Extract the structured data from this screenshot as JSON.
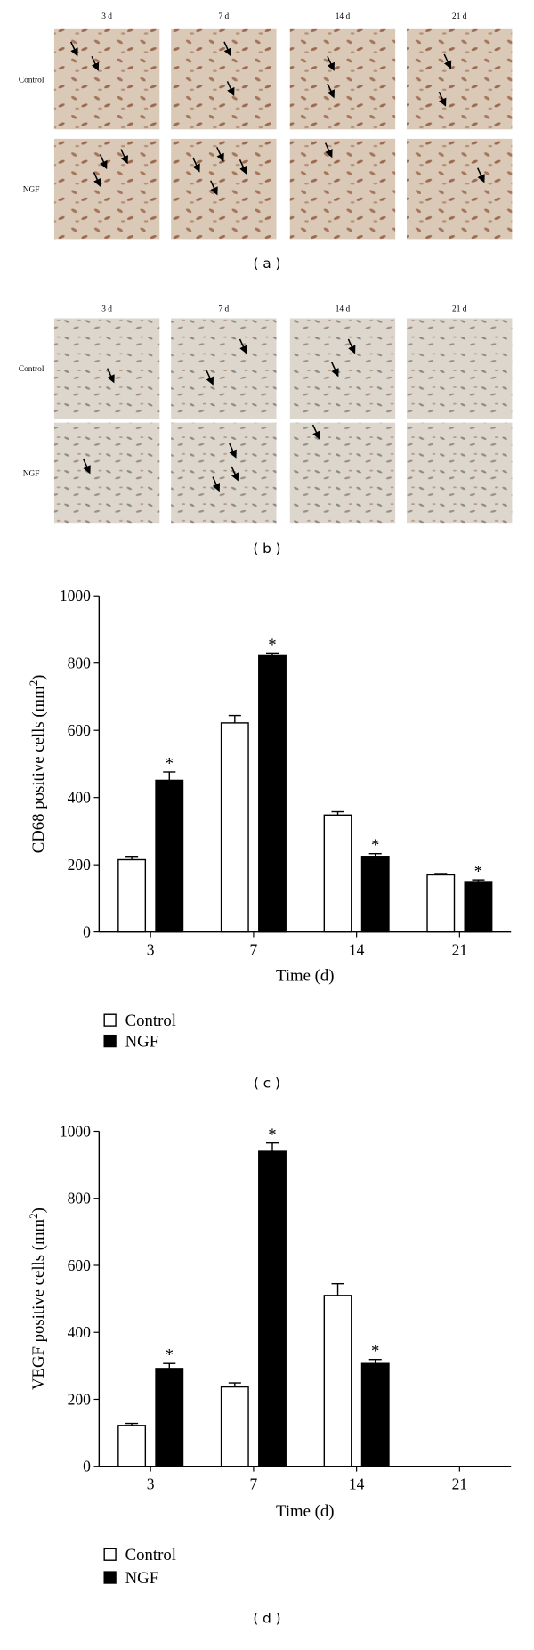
{
  "panels": [
    {
      "label": "( a )",
      "columns": [
        "3 d",
        "7 d",
        "14 d",
        "21 d"
      ],
      "rows": [
        "Control",
        "NGF"
      ]
    },
    {
      "label": "( b )",
      "columns": [
        "3 d",
        "7 d",
        "14 d",
        "21 d"
      ],
      "rows": [
        "Control",
        "NGF"
      ]
    }
  ],
  "chart_data": [
    {
      "type": "bar",
      "panel_label": "( c )",
      "ylabel": {
        "text": "CD68 positive cells (mm",
        "sup": "2",
        "close": ")"
      },
      "xlabel": "Time (d)",
      "categories": [
        "3",
        "7",
        "14",
        "21"
      ],
      "ylim": [
        0,
        1000
      ],
      "yticks": [
        0,
        200,
        400,
        600,
        800,
        1000
      ],
      "series": [
        {
          "name": "Control",
          "color": "#ffffff",
          "values": [
            215,
            622,
            348,
            170
          ],
          "errors": [
            10,
            22,
            10,
            4
          ]
        },
        {
          "name": "NGF",
          "color": "#000000",
          "values": [
            451,
            822,
            225,
            150
          ],
          "errors": [
            25,
            8,
            8,
            5
          ],
          "annotations": [
            "*",
            "*",
            "*",
            "*"
          ]
        }
      ]
    },
    {
      "type": "bar",
      "panel_label": "( d )",
      "ylabel": {
        "text": "VEGF positive cells (mm",
        "sup": "2",
        "close": ")"
      },
      "xlabel": "Time (d)",
      "categories": [
        "3",
        "7",
        "14",
        "21"
      ],
      "ylim": [
        0,
        1000
      ],
      "yticks": [
        0,
        200,
        400,
        600,
        800,
        1000
      ],
      "series": [
        {
          "name": "Control",
          "color": "#ffffff",
          "values": [
            122,
            237,
            510,
            null
          ],
          "errors": [
            6,
            12,
            35,
            null
          ]
        },
        {
          "name": "NGF",
          "color": "#000000",
          "values": [
            292,
            940,
            307,
            null
          ],
          "errors": [
            15,
            25,
            12,
            null
          ],
          "annotations": [
            "*",
            "*",
            "*",
            null
          ]
        }
      ]
    }
  ]
}
